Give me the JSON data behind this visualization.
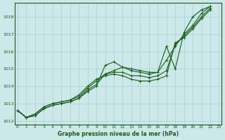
{
  "title": "Graphe pression niveau de la mer (hPa)",
  "bg_color": "#cce8e8",
  "grid_color": "#aad0d0",
  "line_color": "#1a5c1a",
  "ylim": [
    1011.8,
    1018.8
  ],
  "yticks": [
    1012,
    1013,
    1014,
    1015,
    1016,
    1017,
    1018
  ],
  "xlim": [
    -0.3,
    23.3
  ],
  "xticks": [
    0,
    1,
    2,
    3,
    4,
    5,
    6,
    7,
    8,
    9,
    10,
    11,
    12,
    13,
    14,
    15,
    16,
    17,
    18,
    19,
    20,
    21,
    22,
    23
  ],
  "series": [
    [
      1012.6,
      1012.2,
      1012.3,
      1012.7,
      1012.9,
      1013.0,
      1013.1,
      1013.3,
      1013.7,
      1014.0,
      1015.2,
      1015.4,
      1015.1,
      1015.0,
      1014.9,
      1014.8,
      1014.8,
      1016.3,
      1015.0,
      1017.1,
      1018.0,
      1018.4,
      1018.6
    ],
    [
      1012.6,
      1012.2,
      1012.3,
      1012.7,
      1012.9,
      1013.0,
      1013.1,
      1013.3,
      1013.8,
      1014.1,
      1014.7,
      1014.9,
      1015.1,
      1014.9,
      1014.8,
      1014.7,
      1014.8,
      1015.5,
      1016.3,
      1017.0,
      1017.5,
      1018.2,
      1018.6
    ],
    [
      1012.6,
      1012.2,
      1012.4,
      1012.8,
      1013.0,
      1013.1,
      1013.2,
      1013.4,
      1013.9,
      1014.3,
      1014.7,
      1014.8,
      1014.8,
      1014.6,
      1014.6,
      1014.5,
      1014.6,
      1014.9,
      1016.4,
      1016.9,
      1017.4,
      1018.0,
      1018.5
    ],
    [
      1012.6,
      1012.2,
      1012.4,
      1012.8,
      1013.0,
      1013.1,
      1013.2,
      1013.5,
      1014.0,
      1014.4,
      1014.6,
      1014.7,
      1014.6,
      1014.4,
      1014.3,
      1014.3,
      1014.4,
      1014.6,
      1016.5,
      1016.8,
      1017.3,
      1017.9,
      1018.4
    ]
  ]
}
